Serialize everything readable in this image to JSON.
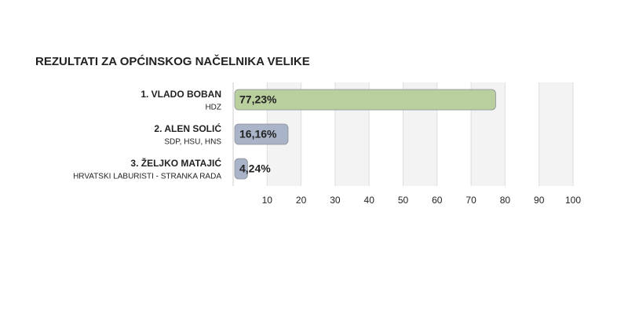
{
  "chart_data": {
    "type": "bar",
    "orientation": "horizontal",
    "title": "REZULTATI ZA OPĆINSKOG NAČELNIKA VELIKE",
    "categories": [
      "1. VLADO BOBAN",
      "2. ALEN SOLIĆ",
      "3. ŽELJKO MATAJIĆ"
    ],
    "parties": [
      "HDZ",
      "SDP, HSU, HNS",
      "HRVATSKI LABURISTI - STRANKA RADA"
    ],
    "values": [
      77.23,
      16.16,
      4.24
    ],
    "value_labels": [
      "77,23%",
      "16,16%",
      "4,24%"
    ],
    "colors": [
      "#b9cf9e",
      "#aab4c8",
      "#aab4c8"
    ],
    "xlim": [
      0,
      100
    ],
    "xticks": [
      10,
      20,
      30,
      40,
      50,
      60,
      70,
      80,
      90,
      100
    ],
    "grid": true
  }
}
